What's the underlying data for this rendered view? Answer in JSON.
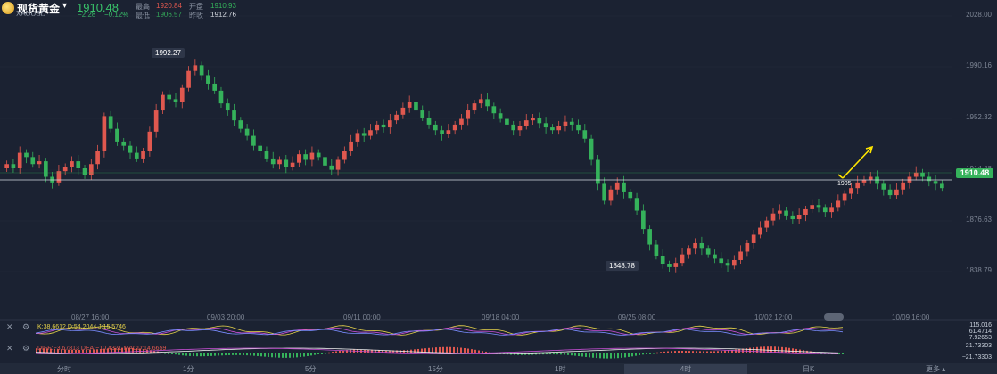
{
  "header": {
    "symbol": "现货黄金",
    "symbol_code": "XAUUSD",
    "price": "1910.48",
    "change": "−2.28",
    "change_pct": "−0.12%",
    "high_label": "最高",
    "high_value": "1920.84",
    "open_label": "开盘",
    "open_value": "1910.93",
    "low_label": "最低",
    "low_value": "1906.57",
    "prev_close_label": "昨收",
    "prev_close_value": "1912.76"
  },
  "chart": {
    "y_ticks": [
      "2028.00",
      "1990.16",
      "1952.32",
      "1914.48",
      "1876.63",
      "1838.79"
    ],
    "current_price_tag": "1910.48",
    "high_callout": "1992.27",
    "low_callout": "1848.78",
    "annotation": "1905",
    "x_labels": [
      "08/27 16:00",
      "09/03 20:00",
      "09/11 00:00",
      "09/18 04:00",
      "09/25 08:00",
      "10/02 12:00",
      "10/09 16:00"
    ]
  },
  "indicators": {
    "kdj": "K:38.6612  D:54.2044  J:15.5746",
    "kdj_ticks": [
      "115.016",
      "61.4714",
      "−7.92653"
    ],
    "macd": "DIFF:−3.67813  DEA:−10.4321  MACD:14.6659",
    "macd_ticks": [
      "21.73303",
      "−21.73303"
    ]
  },
  "bottom_tabs": [
    "分时",
    "1分",
    "5分",
    "15分",
    "1时",
    "4时",
    "日K"
  ],
  "active_tab": "4时",
  "more_label": "更多",
  "colors": {
    "bg": "#1b2232",
    "up": "#e0584f",
    "down": "#35b25b",
    "kline": "#e6d24a",
    "dline": "#c94fd6",
    "jline": "#7a8cff",
    "arrow": "#ffe600"
  },
  "chart_data": {
    "type": "candlestick",
    "y_range": [
      1830,
      2032
    ],
    "candles": [
      1922,
      1919,
      1930,
      1927,
      1922,
      1924,
      1913,
      1909,
      1917,
      1920,
      1924,
      1919,
      1914,
      1922,
      1931,
      1956,
      1947,
      1938,
      1935,
      1930,
      1926,
      1931,
      1945,
      1960,
      1971,
      1968,
      1966,
      1976,
      1988,
      1992,
      1985,
      1979,
      1974,
      1965,
      1960,
      1953,
      1947,
      1942,
      1935,
      1931,
      1926,
      1922,
      1925,
      1920,
      1923,
      1929,
      1925,
      1930,
      1927,
      1921,
      1918,
      1925,
      1931,
      1938,
      1944,
      1942,
      1946,
      1950,
      1948,
      1953,
      1957,
      1962,
      1966,
      1960,
      1955,
      1950,
      1946,
      1943,
      1946,
      1950,
      1954,
      1960,
      1965,
      1968,
      1963,
      1958,
      1954,
      1950,
      1946,
      1949,
      1953,
      1955,
      1951,
      1948,
      1946,
      1949,
      1952,
      1950,
      1946,
      1940,
      1925,
      1908,
      1896,
      1904,
      1909,
      1902,
      1898,
      1889,
      1876,
      1865,
      1857,
      1851,
      1849,
      1852,
      1858,
      1862,
      1866,
      1862,
      1858,
      1855,
      1852,
      1850,
      1854,
      1860,
      1866,
      1872,
      1877,
      1882,
      1887,
      1889,
      1885,
      1883,
      1886,
      1890,
      1893,
      1891,
      1888,
      1891,
      1896,
      1901,
      1905,
      1909,
      1911,
      1913,
      1908,
      1904,
      1900,
      1904,
      1909,
      1913,
      1916,
      1913,
      1910,
      1908,
      1905
    ]
  }
}
